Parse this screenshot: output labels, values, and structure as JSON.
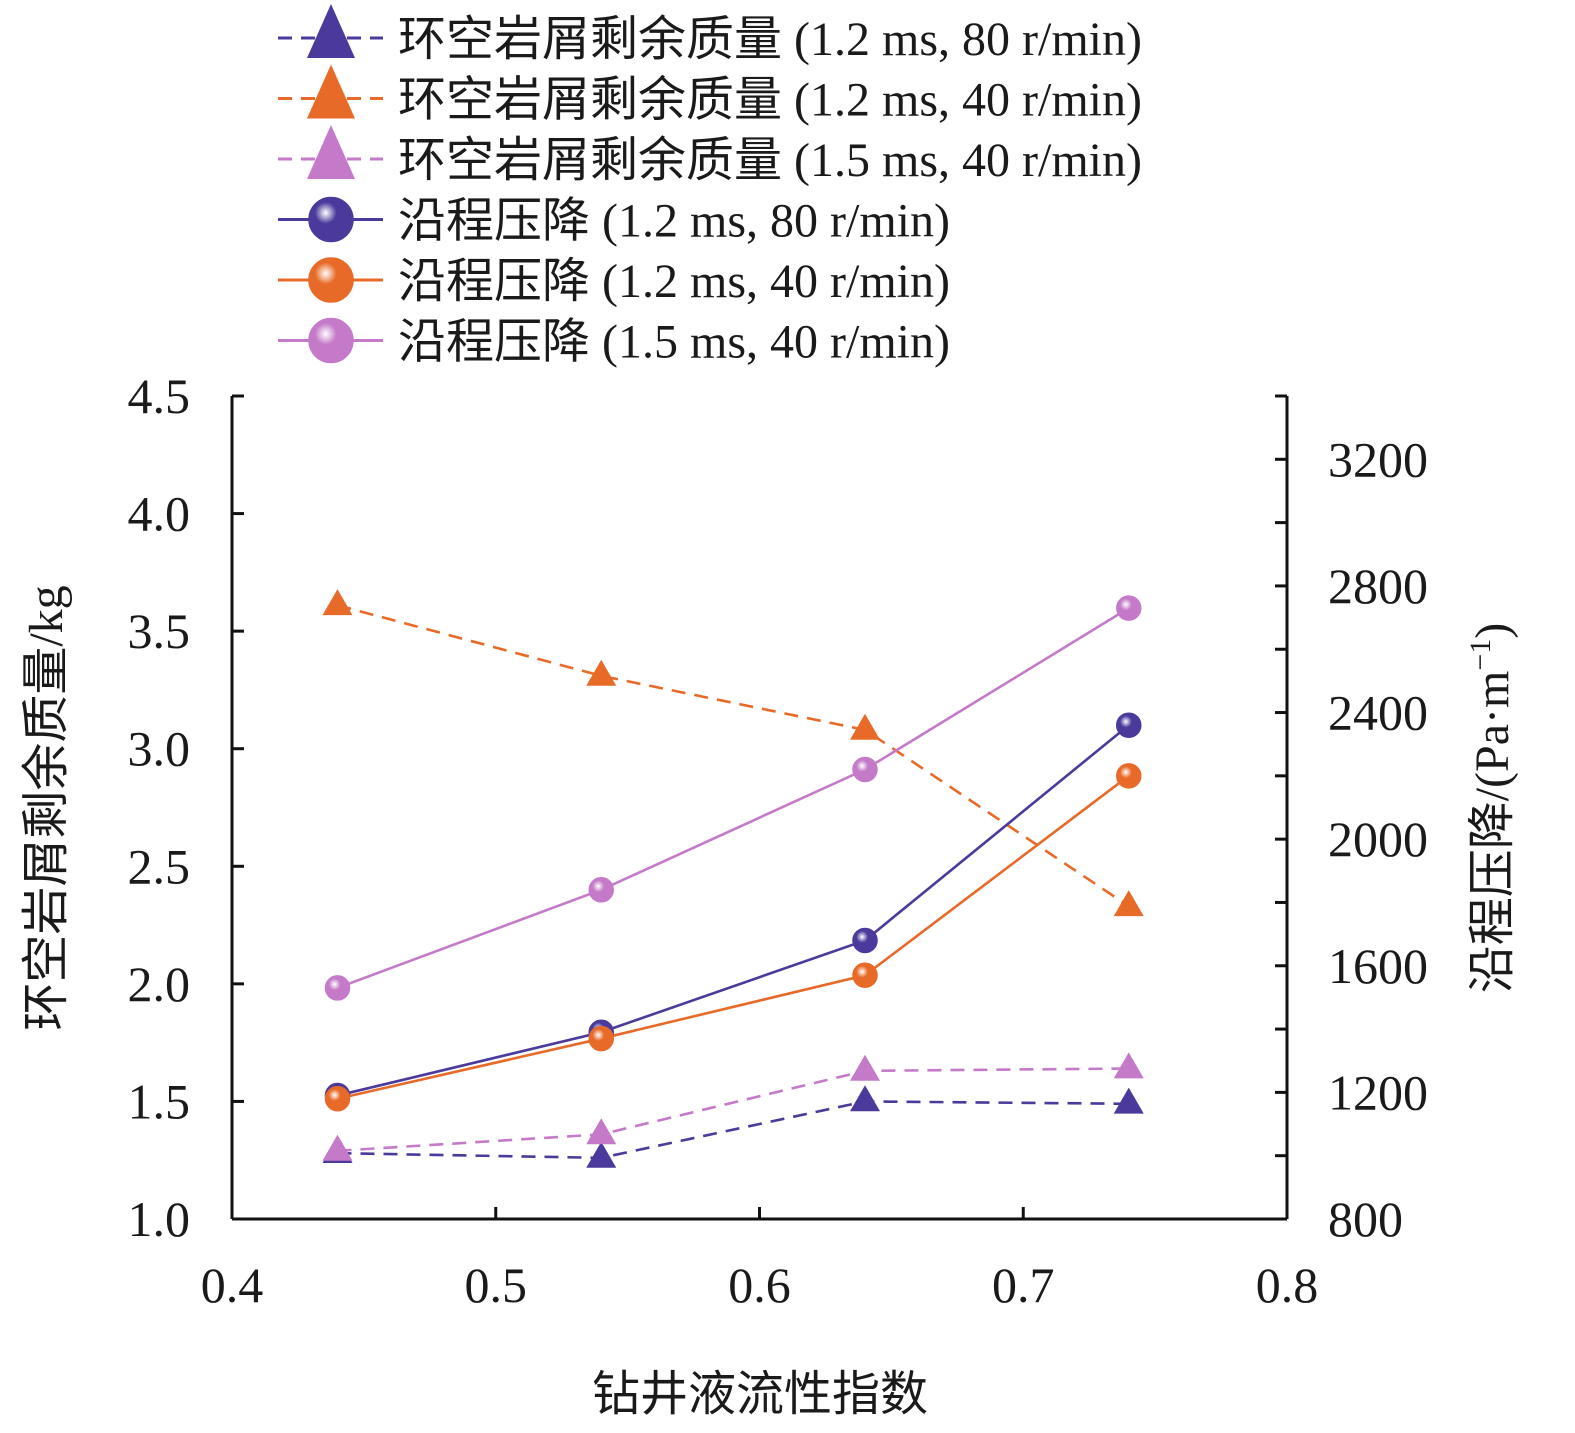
{
  "chart_data": {
    "type": "line",
    "xlabel": "钻井液流性指数",
    "ylabel_left": "环空岩屑剩余质量/kg",
    "ylabel_right": "沿程压降/(Pa·m",
    "ylabel_right_sup": "−1",
    "ylabel_right_close": ")",
    "xlim": [
      0.4,
      0.8
    ],
    "ylim_left": [
      1.0,
      4.5
    ],
    "ylim_right": [
      800,
      3400
    ],
    "x_ticks": [
      "0.4",
      "0.5",
      "0.6",
      "0.7",
      "0.8"
    ],
    "y_left_ticks": [
      "1.0",
      "1.5",
      "2.0",
      "2.5",
      "3.0",
      "3.5",
      "4.0",
      "4.5"
    ],
    "y_right_ticks": [
      "800",
      "1200",
      "1600",
      "2000",
      "2400",
      "2800",
      "3200"
    ],
    "x": [
      0.44,
      0.54,
      0.64,
      0.74
    ],
    "series": [
      {
        "name": "环空岩屑剩余质量 (1.2 ms, 80 r/min)",
        "axis": "left",
        "marker": "triangle",
        "dash": true,
        "color": "#4b3a9c",
        "values": [
          1.28,
          1.26,
          1.5,
          1.49
        ]
      },
      {
        "name": "环空岩屑剩余质量 (1.2 ms, 40 r/min)",
        "axis": "left",
        "marker": "triangle",
        "dash": true,
        "color": "#e86a28",
        "values": [
          3.61,
          3.31,
          3.08,
          2.33
        ]
      },
      {
        "name": "环空岩屑剩余质量 (1.5 ms, 40 r/min)",
        "axis": "left",
        "marker": "triangle",
        "dash": true,
        "color": "#c47ac8",
        "values": [
          1.29,
          1.36,
          1.63,
          1.64
        ]
      },
      {
        "name": "沿程压降 (1.2 ms, 80 r/min)",
        "axis": "right",
        "marker": "circle",
        "dash": false,
        "color": "#4b3a9c",
        "values": [
          1190,
          1390,
          1680,
          2360
        ]
      },
      {
        "name": "沿程压降 (1.2 ms, 40 r/min)",
        "axis": "right",
        "marker": "circle",
        "dash": false,
        "color": "#e86a28",
        "values": [
          1180,
          1370,
          1570,
          2200
        ]
      },
      {
        "name": "沿程压降 (1.5 ms, 40 r/min)",
        "axis": "right",
        "marker": "circle",
        "dash": false,
        "color": "#c47ac8",
        "values": [
          1530,
          1840,
          2220,
          2730
        ]
      }
    ]
  }
}
